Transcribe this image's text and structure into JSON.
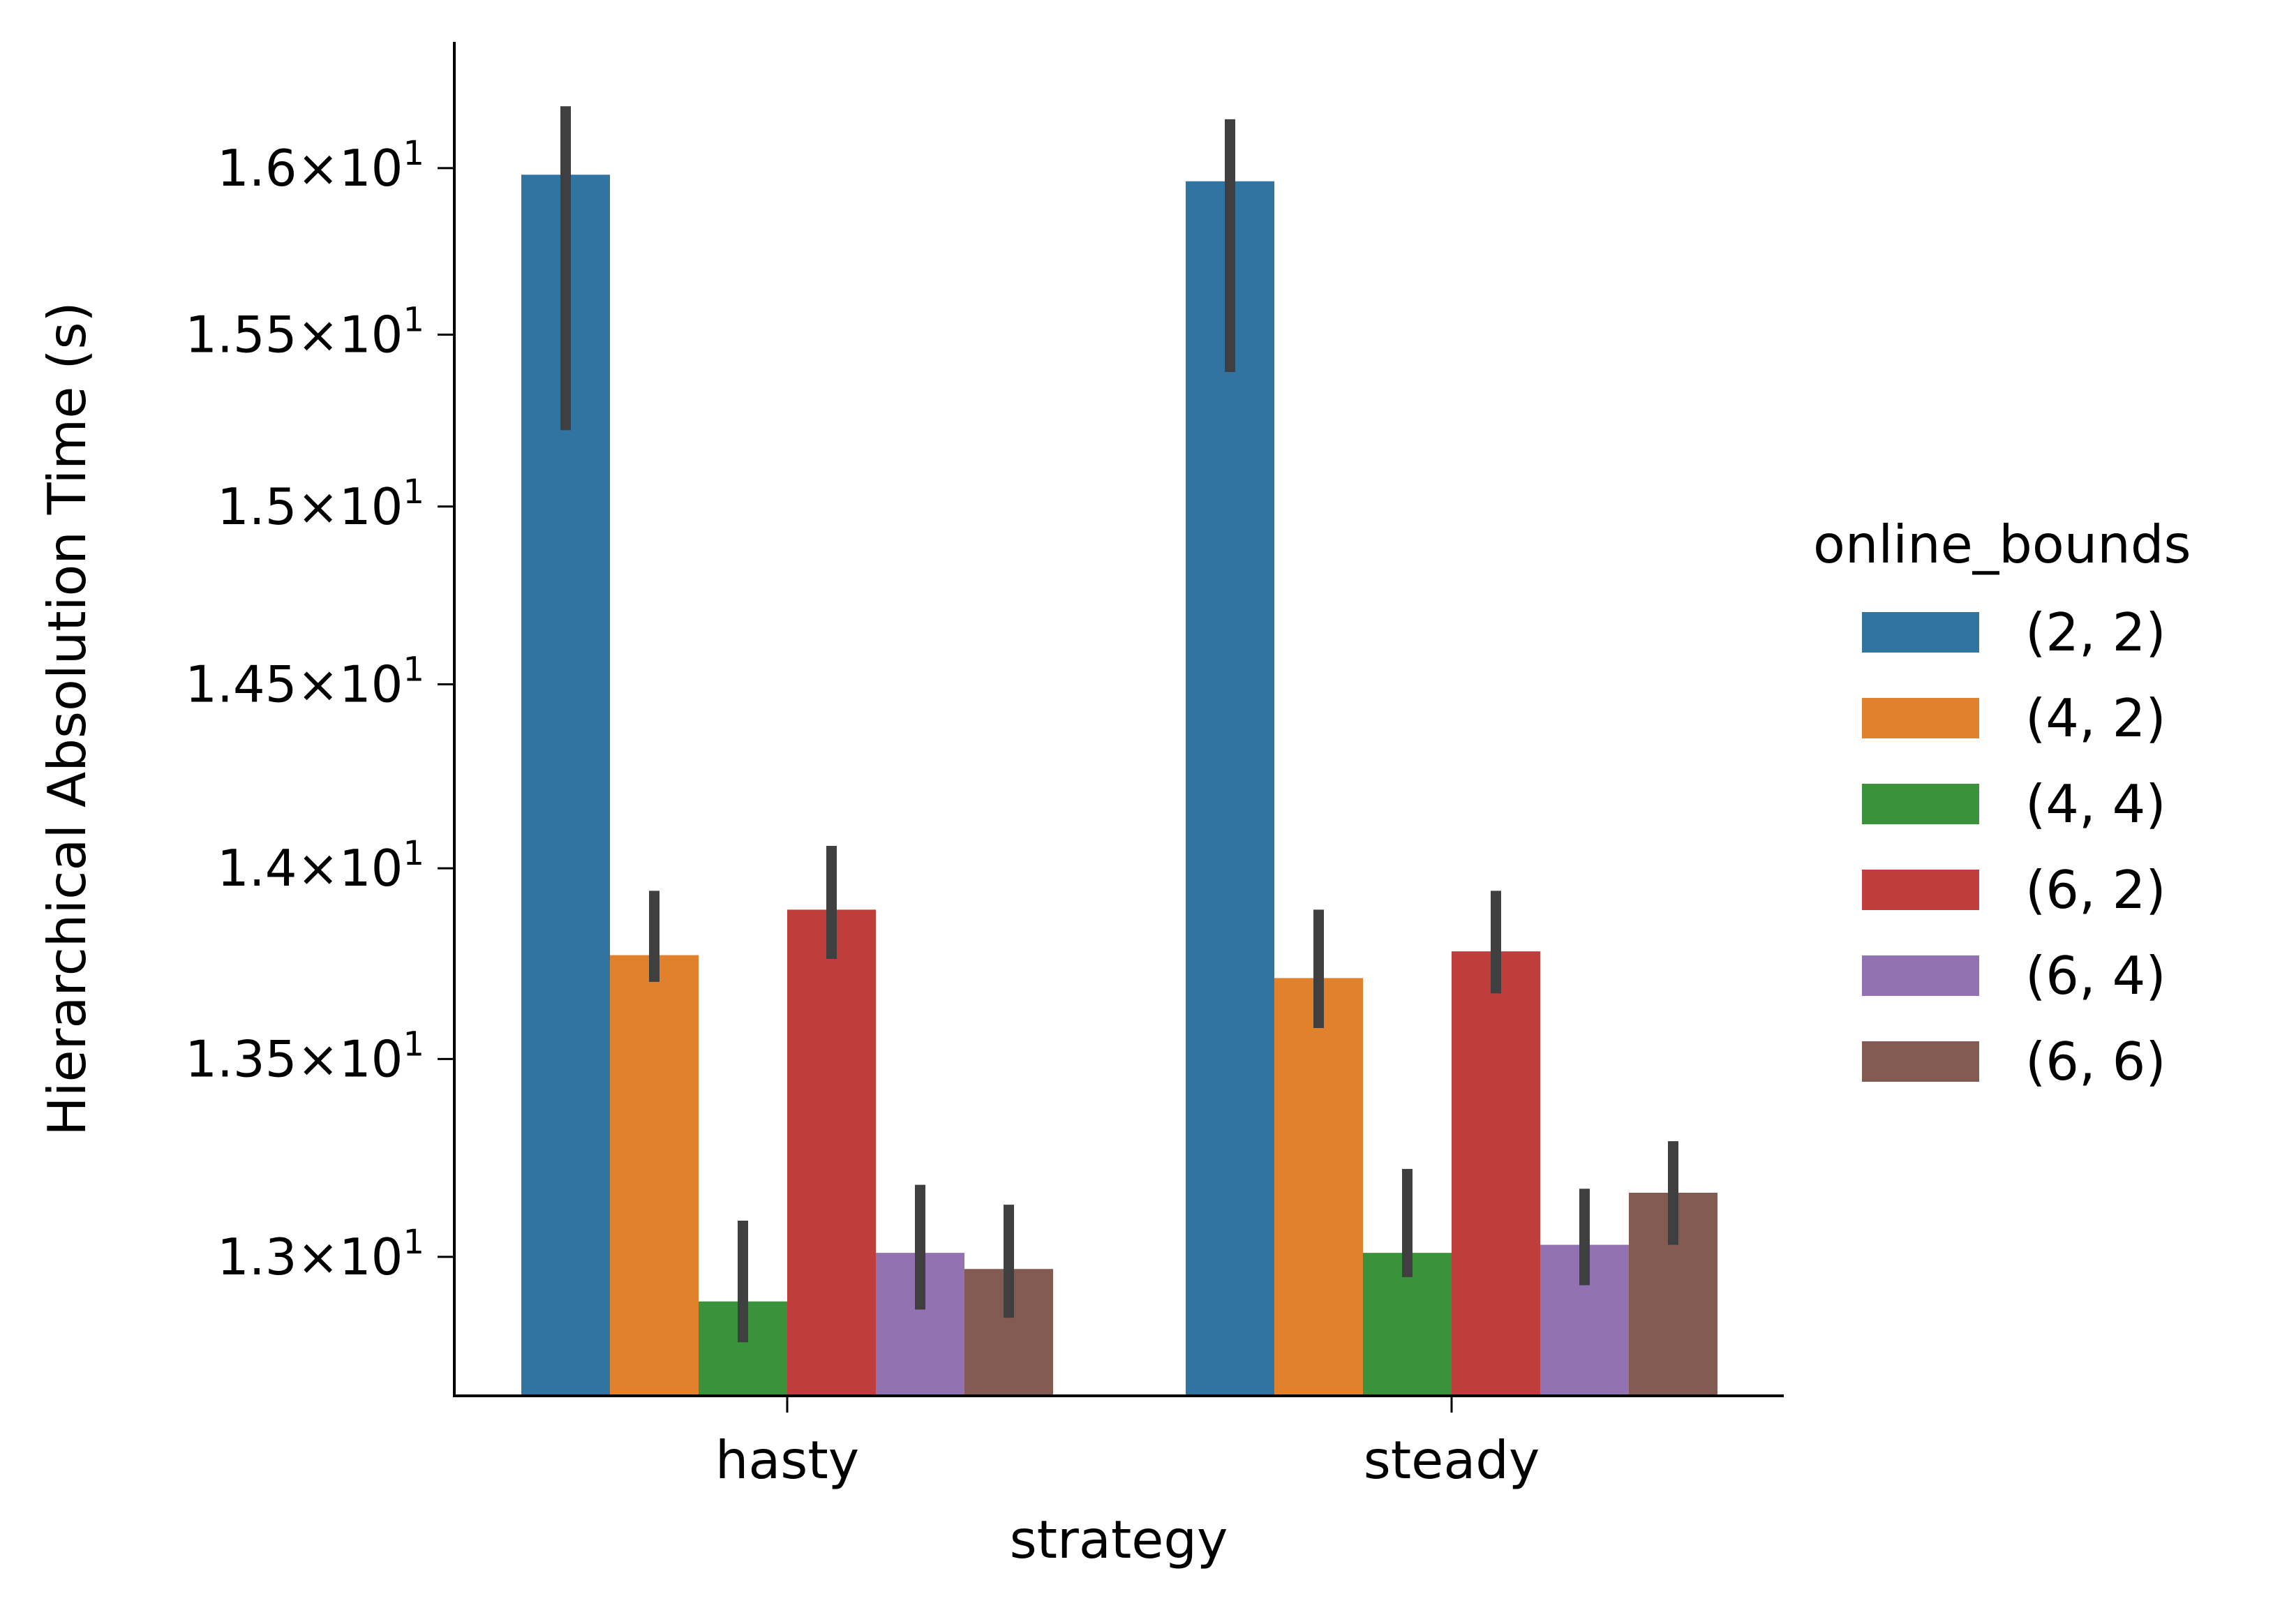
{
  "chart_data": {
    "type": "bar",
    "xlabel": "strategy",
    "ylabel": "Hierarchical Absolution Time (s)",
    "y_scale": "log",
    "ylim": [
      12.66,
      16.39
    ],
    "y_ticks": [
      {
        "value": 16.0,
        "mantissa": "1.6"
      },
      {
        "value": 15.5,
        "mantissa": "1.55"
      },
      {
        "value": 15.0,
        "mantissa": "1.5"
      },
      {
        "value": 14.5,
        "mantissa": "1.45"
      },
      {
        "value": 14.0,
        "mantissa": "1.4"
      },
      {
        "value": 13.5,
        "mantissa": "1.35"
      },
      {
        "value": 13.0,
        "mantissa": "1.3"
      }
    ],
    "tick_times": "×",
    "tick_base": "10",
    "tick_exp": "1",
    "categories": [
      "hasty",
      "steady"
    ],
    "legend": {
      "title": "online_bounds",
      "placement": "right"
    },
    "series": [
      {
        "name": "(2, 2)",
        "color": "#3274a1",
        "values": [
          15.98,
          15.96
        ],
        "err_low": [
          15.22,
          15.39
        ],
        "err_high": [
          16.19,
          16.15
        ]
      },
      {
        "name": "(4, 2)",
        "color": "#e1812c",
        "values": [
          13.77,
          13.71
        ],
        "err_low": [
          13.7,
          13.58
        ],
        "err_high": [
          13.94,
          13.89
        ]
      },
      {
        "name": "(4, 4)",
        "color": "#3a923a",
        "values": [
          12.89,
          13.01
        ],
        "err_low": [
          12.79,
          12.95
        ],
        "err_high": [
          13.09,
          13.22
        ]
      },
      {
        "name": "(6, 2)",
        "color": "#c03d3e",
        "values": [
          13.89,
          13.78
        ],
        "err_low": [
          13.76,
          13.67
        ],
        "err_high": [
          14.06,
          13.94
        ]
      },
      {
        "name": "(6, 4)",
        "color": "#9372b2",
        "values": [
          13.01,
          13.03
        ],
        "err_low": [
          12.87,
          12.93
        ],
        "err_high": [
          13.18,
          13.17
        ]
      },
      {
        "name": "(6, 6)",
        "color": "#845b53",
        "values": [
          12.97,
          13.16
        ],
        "err_low": [
          12.85,
          13.03
        ],
        "err_high": [
          13.13,
          13.29
        ]
      }
    ],
    "error_bar_color": "#3f3f3f"
  }
}
